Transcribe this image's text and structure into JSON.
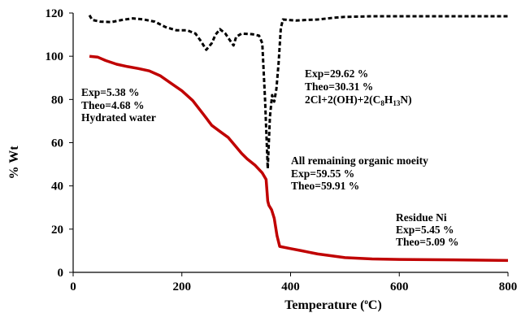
{
  "chart_data": {
    "type": "line",
    "xlabel": "Temperature",
    "xlabel_unit_sup": "o",
    "xlabel_unit": "C",
    "ylabel": "% Wt",
    "xlim": [
      0,
      800
    ],
    "ylim": [
      0,
      120
    ],
    "x_ticks": [
      0,
      200,
      400,
      600,
      800
    ],
    "y_ticks": [
      0,
      20,
      40,
      60,
      80,
      100,
      120
    ],
    "grid": false,
    "legend": "none",
    "series": [
      {
        "color": "#c00000",
        "style": "solid",
        "points": [
          [
            30,
            100
          ],
          [
            45,
            99.6
          ],
          [
            60,
            98
          ],
          [
            80,
            96.3
          ],
          [
            100,
            95.2
          ],
          [
            120,
            94.3
          ],
          [
            140,
            93.2
          ],
          [
            160,
            91
          ],
          [
            180,
            87.5
          ],
          [
            200,
            84
          ],
          [
            220,
            79.5
          ],
          [
            240,
            73
          ],
          [
            255,
            68
          ],
          [
            270,
            65.2
          ],
          [
            285,
            62.5
          ],
          [
            300,
            58
          ],
          [
            310,
            55
          ],
          [
            320,
            52.5
          ],
          [
            335,
            49.5
          ],
          [
            348,
            46
          ],
          [
            355,
            43
          ],
          [
            358,
            33
          ],
          [
            360,
            31
          ],
          [
            365,
            29
          ],
          [
            370,
            25
          ],
          [
            375,
            17
          ],
          [
            380,
            12
          ],
          [
            400,
            11
          ],
          [
            420,
            10
          ],
          [
            450,
            8.5
          ],
          [
            500,
            6.8
          ],
          [
            550,
            6.2
          ],
          [
            600,
            6
          ],
          [
            700,
            5.8
          ],
          [
            800,
            5.5
          ]
        ]
      },
      {
        "color": "#000000",
        "style": "dashed",
        "points": [
          [
            30,
            119
          ],
          [
            35,
            116.8
          ],
          [
            50,
            116
          ],
          [
            70,
            115.8
          ],
          [
            90,
            116.8
          ],
          [
            110,
            117.5
          ],
          [
            130,
            117
          ],
          [
            150,
            116
          ],
          [
            170,
            113.5
          ],
          [
            190,
            112
          ],
          [
            210,
            112
          ],
          [
            225,
            110.5
          ],
          [
            235,
            107
          ],
          [
            245,
            103
          ],
          [
            255,
            106
          ],
          [
            262,
            110
          ],
          [
            270,
            112.5
          ],
          [
            280,
            110.5
          ],
          [
            288,
            107.5
          ],
          [
            295,
            105
          ],
          [
            300,
            109
          ],
          [
            310,
            110.5
          ],
          [
            330,
            110.2
          ],
          [
            342,
            109.5
          ],
          [
            348,
            106
          ],
          [
            353,
            80
          ],
          [
            358,
            48
          ],
          [
            362,
            72
          ],
          [
            366,
            82
          ],
          [
            370,
            79
          ],
          [
            374,
            85
          ],
          [
            378,
            97
          ],
          [
            382,
            113
          ],
          [
            386,
            117
          ],
          [
            410,
            116.5
          ],
          [
            430,
            116.8
          ],
          [
            450,
            117
          ],
          [
            480,
            117.8
          ],
          [
            500,
            118.2
          ],
          [
            550,
            118.5
          ],
          [
            600,
            118.5
          ],
          [
            700,
            118.5
          ],
          [
            800,
            118.5
          ]
        ]
      }
    ],
    "annotations": [
      {
        "lines": [
          "Exp=5.38 %",
          "Theo=4.68 %",
          "Hydrated water"
        ]
      },
      {
        "lines": [
          "Exp=29.62 %",
          "Theo=30.31 %"
        ],
        "formula": {
          "text1": "2Cl+2(OH)+2(C",
          "sub1": "8",
          "text2": "H",
          "sub2": "13",
          "text3": "N)"
        }
      },
      {
        "lines": [
          "All remaining organic moeity",
          "Exp=59.55 %",
          "Theo=59.91 %"
        ]
      },
      {
        "lines": [
          "Residue Ni",
          "Exp=5.45 %",
          "Theo=5.09 %"
        ]
      }
    ]
  }
}
